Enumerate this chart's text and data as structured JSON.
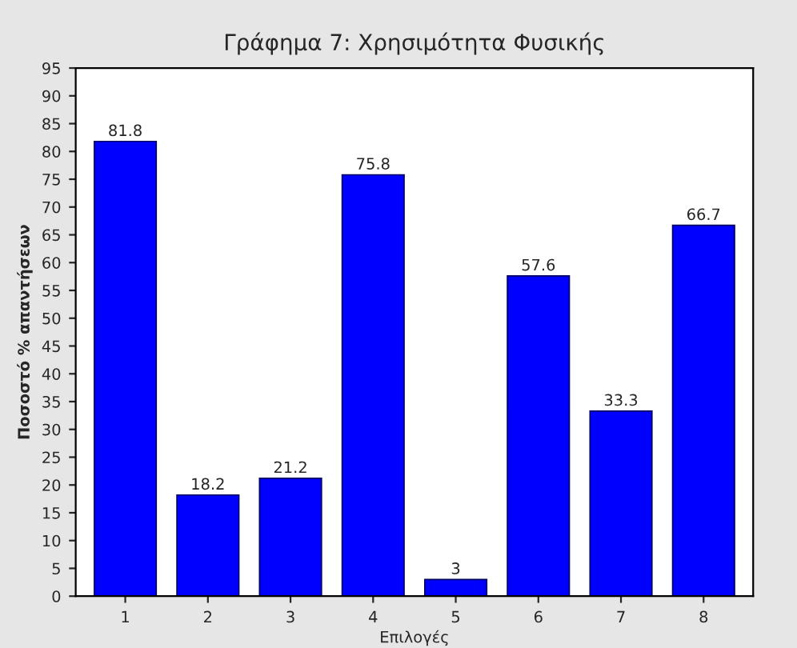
{
  "chart_data": {
    "type": "bar",
    "title": "Γράφημα 7: Χρησιμότητα Φυσικής",
    "xlabel": "Επιλογές",
    "ylabel": "Ποσοστό % απαντήσεων",
    "categories": [
      "1",
      "2",
      "3",
      "4",
      "5",
      "6",
      "7",
      "8"
    ],
    "values": [
      81.8,
      18.2,
      21.2,
      75.8,
      3,
      57.6,
      33.3,
      66.7
    ],
    "color": "#0000ff",
    "ylim": [
      0,
      95
    ],
    "yticks": [
      0,
      5,
      10,
      15,
      20,
      25,
      30,
      35,
      40,
      45,
      50,
      55,
      60,
      65,
      70,
      75,
      80,
      85,
      90,
      95
    ],
    "data_labels": true
  }
}
